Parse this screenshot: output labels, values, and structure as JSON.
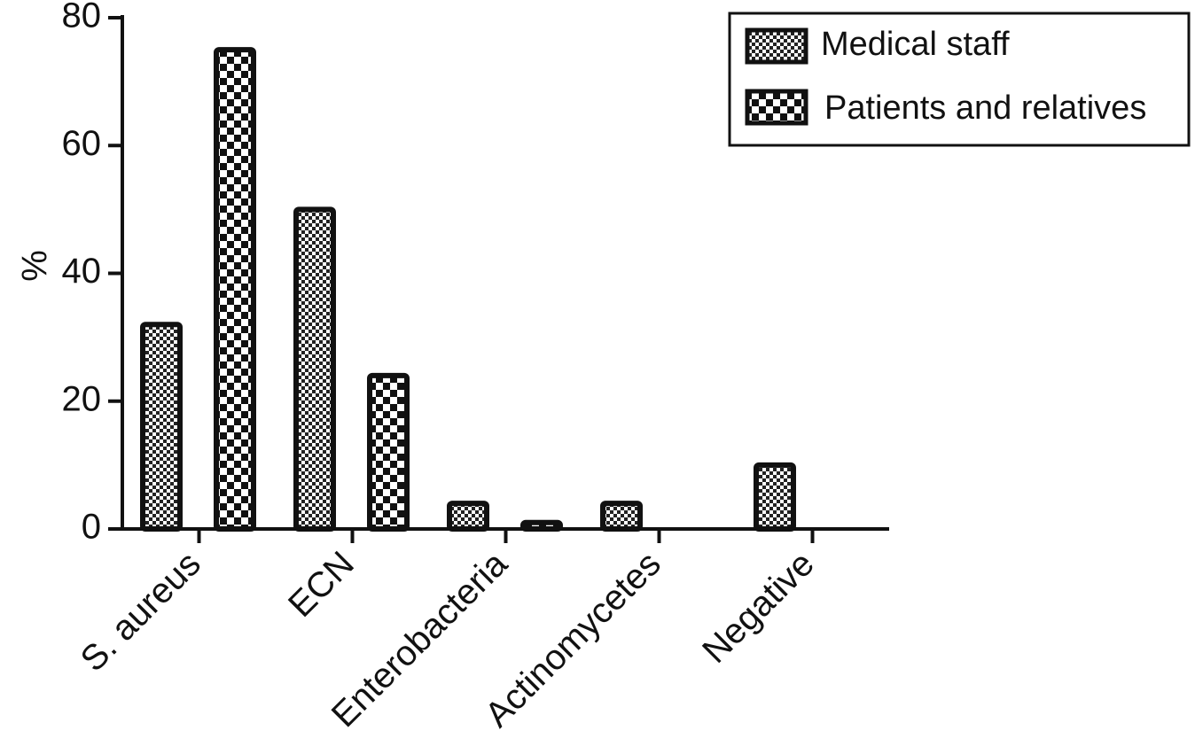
{
  "chart_data": {
    "type": "bar",
    "title": "",
    "xlabel": "",
    "ylabel": "%",
    "ylim": [
      0,
      80
    ],
    "yticks": [
      "0",
      "20",
      "40",
      "60",
      "80"
    ],
    "categories": [
      "S. aureus",
      "ECN",
      "Enterobacteria",
      "Actinomycetes",
      "Negative"
    ],
    "series": [
      {
        "name": "Medical staff",
        "values": [
          32,
          50,
          4,
          4,
          10
        ],
        "pattern": "fine-checker"
      },
      {
        "name": "Patients and relatives",
        "values": [
          75,
          24,
          1,
          0,
          0
        ],
        "pattern": "coarse-checker"
      }
    ],
    "legend_position": "top-right",
    "grid": false,
    "colors": {
      "ink": "#111111",
      "background": "#ffffff"
    }
  }
}
